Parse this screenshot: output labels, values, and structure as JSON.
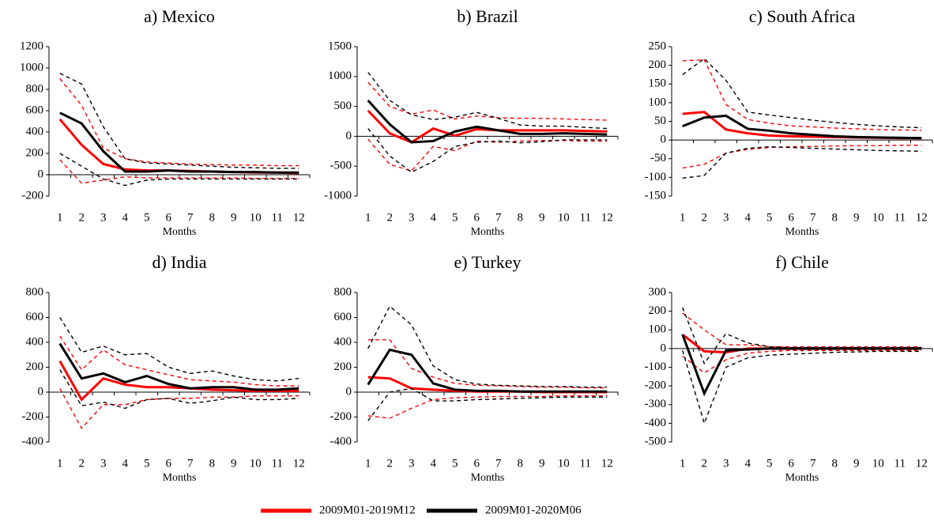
{
  "legend": [
    {
      "name": "2009M01-2019M12",
      "color": "#ff0000"
    },
    {
      "name": "2009M01-2020M06",
      "color": "#000000"
    }
  ],
  "chart_data": [
    {
      "type": "line",
      "title": "a) Mexico",
      "x_label": "Months",
      "categories": [
        "1",
        "2",
        "3",
        "4",
        "5",
        "6",
        "7",
        "8",
        "9",
        "10",
        "11",
        "12"
      ],
      "ylim": [
        -200,
        1200
      ],
      "yticks": [
        -200,
        0,
        200,
        400,
        600,
        800,
        1000,
        1200
      ],
      "series": [
        {
          "color": "#ff0000",
          "values": [
            520,
            280,
            100,
            50,
            40,
            40,
            35,
            30,
            25,
            20,
            20,
            15
          ],
          "upper": [
            900,
            650,
            250,
            150,
            120,
            110,
            100,
            95,
            90,
            90,
            85,
            85
          ],
          "lower": [
            140,
            -80,
            -50,
            -20,
            -30,
            -30,
            -30,
            -30,
            -30,
            -35,
            -35,
            -35
          ]
        },
        {
          "color": "#000000",
          "values": [
            580,
            480,
            220,
            30,
            30,
            40,
            30,
            30,
            25,
            25,
            20,
            20
          ],
          "upper": [
            950,
            850,
            450,
            150,
            110,
            100,
            90,
            80,
            70,
            65,
            60,
            60
          ],
          "lower": [
            200,
            80,
            -40,
            -100,
            -50,
            -40,
            -40,
            -40,
            -40,
            -40,
            -40,
            -40
          ]
        }
      ]
    },
    {
      "type": "line",
      "title": "b) Brazil",
      "x_label": "Months",
      "categories": [
        "1",
        "2",
        "3",
        "4",
        "5",
        "6",
        "7",
        "8",
        "9",
        "10",
        "11",
        "12"
      ],
      "ylim": [
        -1000,
        1500
      ],
      "yticks": [
        -1000,
        -500,
        0,
        500,
        1000,
        1500
      ],
      "series": [
        {
          "color": "#ff0000",
          "values": [
            430,
            50,
            -100,
            130,
            10,
            120,
            100,
            100,
            100,
            100,
            90,
            80
          ],
          "upper": [
            900,
            500,
            370,
            440,
            290,
            340,
            310,
            300,
            300,
            290,
            280,
            270
          ],
          "lower": [
            -50,
            -470,
            -580,
            -170,
            -240,
            -80,
            -100,
            -80,
            -70,
            -70,
            -80,
            -80
          ]
        },
        {
          "color": "#000000",
          "values": [
            600,
            200,
            -100,
            -80,
            80,
            160,
            100,
            40,
            40,
            50,
            40,
            30
          ],
          "upper": [
            1070,
            600,
            360,
            280,
            320,
            400,
            300,
            190,
            170,
            170,
            150,
            130
          ],
          "lower": [
            130,
            -330,
            -600,
            -420,
            -170,
            -100,
            -80,
            -110,
            -90,
            -60,
            -60,
            -60
          ]
        }
      ]
    },
    {
      "type": "line",
      "title": "c) South Africa",
      "x_label": "Months",
      "categories": [
        "1",
        "2",
        "3",
        "4",
        "5",
        "6",
        "7",
        "8",
        "9",
        "10",
        "11",
        "12"
      ],
      "ylim": [
        -150,
        250
      ],
      "yticks": [
        -150,
        -100,
        -50,
        0,
        50,
        100,
        150,
        200,
        250
      ],
      "series": [
        {
          "color": "#ff0000",
          "values": [
            70,
            75,
            28,
            18,
            12,
            10,
            9,
            8,
            7,
            6,
            5,
            5
          ],
          "upper": [
            212,
            215,
            95,
            55,
            45,
            38,
            35,
            32,
            30,
            28,
            27,
            26
          ],
          "lower": [
            -75,
            -65,
            -35,
            -25,
            -20,
            -18,
            -17,
            -16,
            -15,
            -15,
            -14,
            -14
          ]
        },
        {
          "color": "#000000",
          "values": [
            37,
            60,
            65,
            30,
            25,
            18,
            14,
            10,
            8,
            7,
            6,
            5
          ],
          "upper": [
            175,
            218,
            160,
            75,
            67,
            60,
            53,
            47,
            42,
            38,
            35,
            33
          ],
          "lower": [
            -102,
            -95,
            -35,
            -22,
            -18,
            -20,
            -22,
            -24,
            -26,
            -28,
            -29,
            -30
          ]
        }
      ]
    },
    {
      "type": "line",
      "title": "d) India",
      "x_label": "Months",
      "categories": [
        "1",
        "2",
        "3",
        "4",
        "5",
        "6",
        "7",
        "8",
        "9",
        "10",
        "11",
        "12"
      ],
      "ylim": [
        -400,
        800
      ],
      "yticks": [
        -400,
        -200,
        0,
        200,
        400,
        600,
        800
      ],
      "series": [
        {
          "color": "#ff0000",
          "values": [
            250,
            -60,
            110,
            60,
            40,
            40,
            30,
            20,
            15,
            10,
            10,
            10
          ],
          "upper": [
            450,
            180,
            340,
            220,
            180,
            140,
            100,
            90,
            80,
            60,
            50,
            50
          ],
          "lower": [
            30,
            -290,
            -100,
            -100,
            -60,
            -50,
            -50,
            -40,
            -40,
            -30,
            -30,
            -30
          ]
        },
        {
          "color": "#000000",
          "values": [
            390,
            110,
            150,
            80,
            130,
            65,
            30,
            40,
            40,
            20,
            20,
            30
          ],
          "upper": [
            600,
            320,
            370,
            300,
            310,
            200,
            150,
            170,
            130,
            100,
            90,
            110
          ],
          "lower": [
            180,
            -110,
            -80,
            -130,
            -60,
            -50,
            -90,
            -70,
            -40,
            -60,
            -60,
            -50
          ]
        }
      ]
    },
    {
      "type": "line",
      "title": "e) Turkey",
      "x_label": "Months",
      "categories": [
        "1",
        "2",
        "3",
        "4",
        "5",
        "6",
        "7",
        "8",
        "9",
        "10",
        "11",
        "12"
      ],
      "ylim": [
        -400,
        800
      ],
      "yticks": [
        -400,
        -200,
        0,
        200,
        400,
        600,
        800
      ],
      "series": [
        {
          "color": "#ff0000",
          "values": [
            120,
            110,
            30,
            20,
            10,
            5,
            5,
            5,
            0,
            0,
            0,
            0
          ],
          "upper": [
            420,
            420,
            190,
            120,
            70,
            55,
            50,
            45,
            40,
            40,
            35,
            35
          ],
          "lower": [
            -190,
            -210,
            -130,
            -60,
            -45,
            -40,
            -35,
            -35,
            -35,
            -30,
            -30,
            -30
          ]
        },
        {
          "color": "#000000",
          "values": [
            60,
            340,
            300,
            70,
            20,
            10,
            10,
            5,
            5,
            5,
            5,
            5
          ],
          "upper": [
            350,
            690,
            540,
            210,
            100,
            65,
            55,
            50,
            45,
            45,
            40,
            40
          ],
          "lower": [
            -230,
            0,
            30,
            -70,
            -70,
            -60,
            -55,
            -50,
            -45,
            -40,
            -40,
            -40
          ]
        }
      ]
    },
    {
      "type": "line",
      "title": "f) Chile",
      "x_label": "Months",
      "categories": [
        "1",
        "2",
        "3",
        "4",
        "5",
        "6",
        "7",
        "8",
        "9",
        "10",
        "11",
        "12"
      ],
      "ylim": [
        -500,
        300
      ],
      "yticks": [
        -500,
        -400,
        -300,
        -200,
        -100,
        0,
        100,
        200,
        300
      ],
      "series": [
        {
          "color": "#ff0000",
          "values": [
            75,
            -15,
            -20,
            0,
            0,
            0,
            0,
            0,
            0,
            0,
            0,
            0
          ],
          "upper": [
            190,
            100,
            20,
            20,
            10,
            10,
            10,
            10,
            10,
            10,
            10,
            10
          ],
          "lower": [
            -40,
            -130,
            -60,
            -25,
            -15,
            -10,
            -10,
            -10,
            -10,
            -10,
            -10,
            -10
          ]
        },
        {
          "color": "#000000",
          "values": [
            75,
            -240,
            -10,
            -5,
            0,
            0,
            0,
            0,
            0,
            0,
            0,
            0
          ],
          "upper": [
            220,
            -80,
            80,
            30,
            10,
            5,
            5,
            5,
            5,
            5,
            5,
            5
          ],
          "lower": [
            -10,
            -400,
            -100,
            -50,
            -35,
            -30,
            -25,
            -20,
            -18,
            -15,
            -15,
            -15
          ]
        }
      ]
    }
  ]
}
